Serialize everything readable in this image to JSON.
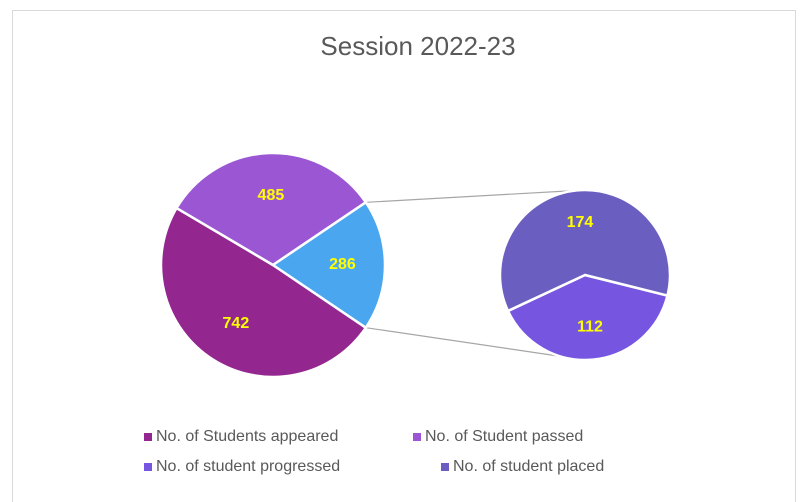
{
  "chart_data": {
    "type": "pie-of-pie",
    "title": "Session 2022-23",
    "categories": [
      "No. of Students appeared",
      "No. of Student passed",
      "No. of student progressed",
      "No. of student placed"
    ],
    "values": [
      742,
      485,
      112,
      174
    ],
    "colors": [
      "#93278f",
      "#9b57d3",
      "#7656e0",
      "#6a5fc1"
    ],
    "other_value": 286,
    "other_color": "#4aa6ee",
    "legend": "bottom"
  }
}
